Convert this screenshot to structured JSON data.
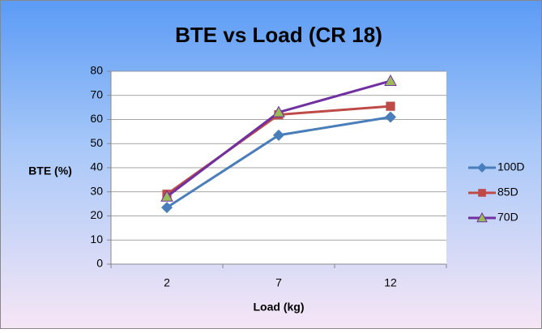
{
  "chart_data": {
    "type": "line",
    "title": "BTE vs Load (CR 18)",
    "x_label": "Load (kg)",
    "y_label": "BTE (%)",
    "categories": [
      "2",
      "7",
      "12"
    ],
    "series": [
      {
        "name": "100D",
        "color": "#4a7ebb",
        "marker": "diamond",
        "values": [
          23.5,
          53.5,
          61
        ]
      },
      {
        "name": "85D",
        "color": "#be4b48",
        "marker": "square",
        "values": [
          29,
          62,
          65.5
        ]
      },
      {
        "name": "70D",
        "color": "#7030a0",
        "marker": "triangle",
        "marker_color": "#9bbb59",
        "values": [
          28,
          63,
          76
        ]
      }
    ],
    "ylim": [
      0,
      80
    ],
    "yticks": [
      0,
      10,
      20,
      30,
      40,
      50,
      60,
      70,
      80
    ],
    "grid": true,
    "legend": "right"
  }
}
